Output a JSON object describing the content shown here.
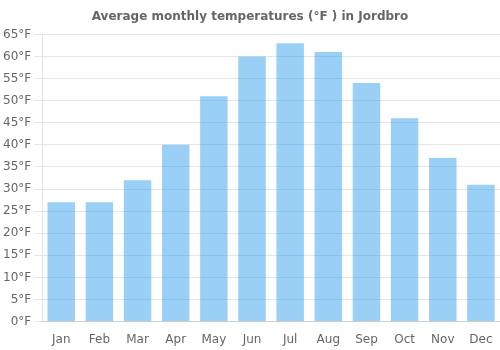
{
  "chart_data": {
    "type": "bar",
    "title": "Average monthly temperatures (°F ) in Jordbro",
    "categories": [
      "Jan",
      "Feb",
      "Mar",
      "Apr",
      "May",
      "Jun",
      "Jul",
      "Aug",
      "Sep",
      "Oct",
      "Nov",
      "Dec"
    ],
    "values": [
      27,
      27,
      32,
      40,
      51,
      60,
      63,
      61,
      54,
      46,
      37,
      31
    ],
    "ylim": [
      0,
      65
    ],
    "yticks": [
      {
        "value": 0,
        "label": "0°F"
      },
      {
        "value": 5,
        "label": "5°F"
      },
      {
        "value": 10,
        "label": "10°F"
      },
      {
        "value": 15,
        "label": "15°F"
      },
      {
        "value": 20,
        "label": "20°F"
      },
      {
        "value": 25,
        "label": "25°F"
      },
      {
        "value": 30,
        "label": "30°F"
      },
      {
        "value": 35,
        "label": "35°F"
      },
      {
        "value": 40,
        "label": "40°F"
      },
      {
        "value": 45,
        "label": "45°F"
      },
      {
        "value": 50,
        "label": "50°F"
      },
      {
        "value": 55,
        "label": "55°F"
      },
      {
        "value": 60,
        "label": "60°F"
      },
      {
        "value": 65,
        "label": "65°F"
      }
    ],
    "grid": true
  }
}
